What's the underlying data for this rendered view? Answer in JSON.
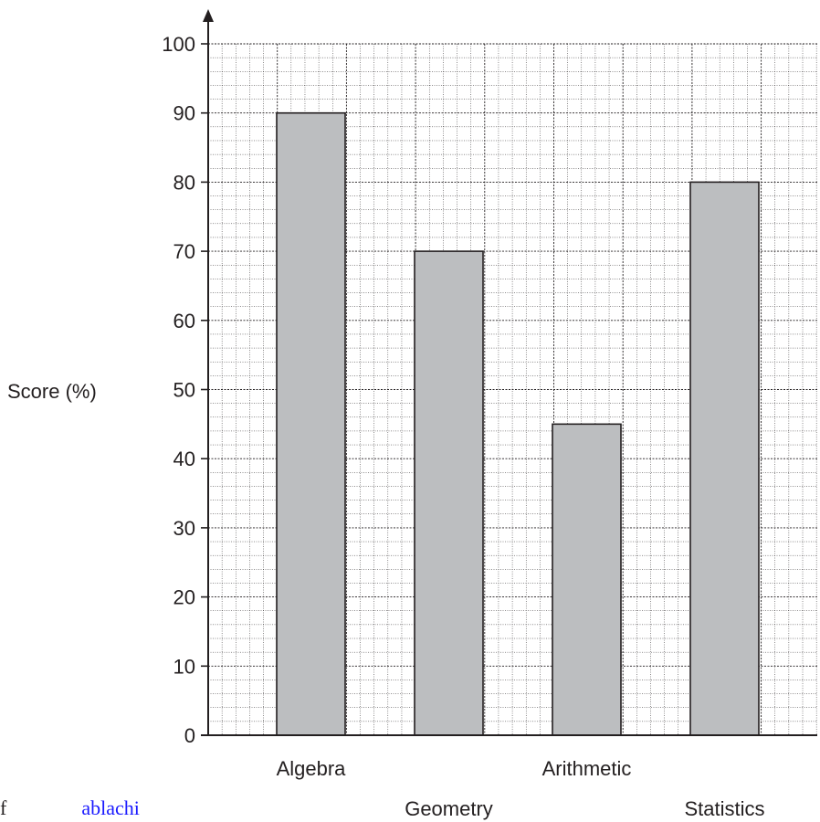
{
  "chart_data": {
    "type": "bar",
    "categories": [
      "Algebra",
      "Geometry",
      "Arithmetic",
      "Statistics"
    ],
    "values": [
      90,
      70,
      45,
      80
    ],
    "ylabel": "Score (%)",
    "xlabel": "",
    "ylim": [
      0,
      100
    ],
    "yticks": [
      "0",
      "10",
      "20",
      "30",
      "40",
      "50",
      "60",
      "70",
      "80",
      "90",
      "100"
    ],
    "grid": true,
    "colors": {
      "bar": "#bcbec0",
      "stroke": "#231f20",
      "grid": "#231f20"
    }
  },
  "footer_fragment": {
    "text": "f",
    "link": "ablachi"
  }
}
